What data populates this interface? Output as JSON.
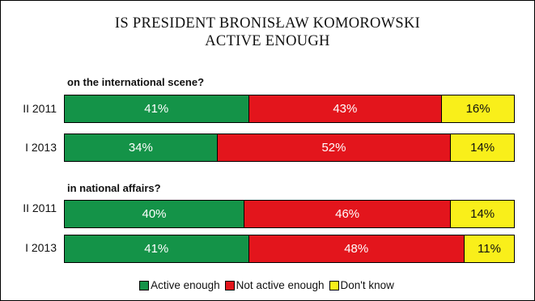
{
  "chart_data": {
    "type": "bar",
    "stacked": true,
    "orientation": "horizontal",
    "title": "IS PRESIDENT BRONISŁAW KOMOROWSKI ACTIVE ENOUGH",
    "title_lines": [
      "IS PRESIDENT BRONISŁAW KOMOROWSKI",
      "ACTIVE ENOUGH"
    ],
    "unit": "%",
    "series_colors": {
      "Active enough": "#149348",
      "Not active enough": "#e3151c",
      "Don't know": "#f9ef1a"
    },
    "legend": [
      "Active enough",
      "Not active enough",
      "Don't know"
    ],
    "legend_placement": "bottom",
    "groups": [
      {
        "label": "on the international scene?",
        "rows": [
          {
            "category": "II 2011",
            "values": [
              41,
              43,
              16
            ]
          },
          {
            "category": "I 2013",
            "values": [
              34,
              52,
              14
            ]
          }
        ]
      },
      {
        "label": "in national affairs?",
        "rows": [
          {
            "category": "II 2011",
            "values": [
              40,
              46,
              14
            ]
          },
          {
            "category": "I 2013",
            "values": [
              41,
              48,
              11
            ]
          }
        ]
      }
    ]
  }
}
